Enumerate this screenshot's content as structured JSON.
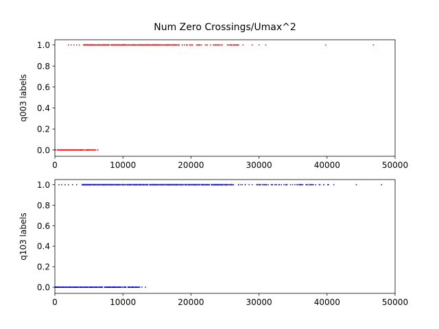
{
  "chart_data": [
    {
      "type": "scatter",
      "title": "Num Zero Crossings/Umax^2",
      "xlabel": "",
      "ylabel": "q003 labels",
      "xlim": [
        0,
        50000
      ],
      "ylim": [
        -0.06,
        1.05
      ],
      "xticks": [
        "0",
        "10000",
        "20000",
        "30000",
        "40000",
        "50000"
      ],
      "xtick_values": [
        0,
        10000,
        20000,
        30000,
        40000,
        50000
      ],
      "yticks": [
        "0.0",
        "0.2",
        "0.4",
        "0.6",
        "0.8",
        "1.0"
      ],
      "ytick_values": [
        0,
        0.2,
        0.4,
        0.6,
        0.8,
        1.0
      ],
      "color": "#ff0000",
      "series": [
        {
          "label_value": 0,
          "x_min": 0,
          "x_max": 6300,
          "dense_to": 6000,
          "outliers": [
            6300
          ]
        },
        {
          "label_value": 1,
          "x_min": 2000,
          "x_max": 46800,
          "dense_from": 4200,
          "dense_to": 18000,
          "outliers": [
            2000,
            2400,
            2800,
            3200,
            3600,
            20000,
            21000,
            23500,
            24500,
            25500,
            29000,
            30000,
            31000,
            39800,
            46800
          ]
        }
      ]
    },
    {
      "type": "scatter",
      "title": "",
      "xlabel": "",
      "ylabel": "q103 labels",
      "xlim": [
        0,
        50000
      ],
      "ylim": [
        -0.06,
        1.05
      ],
      "xticks": [
        "0",
        "10000",
        "20000",
        "30000",
        "40000",
        "50000"
      ],
      "xtick_values": [
        0,
        10000,
        20000,
        30000,
        40000,
        50000
      ],
      "yticks": [
        "0.0",
        "0.2",
        "0.4",
        "0.6",
        "0.8",
        "1.0"
      ],
      "ytick_values": [
        0,
        0.2,
        0.4,
        0.6,
        0.8,
        1.0
      ],
      "color": "#0000ff",
      "series": [
        {
          "label_value": 0,
          "x_min": 0,
          "x_max": 13300,
          "dense_to": 12500,
          "outliers": [
            12800,
            13300
          ]
        },
        {
          "label_value": 1,
          "x_min": 600,
          "x_max": 48000,
          "dense_from": 4000,
          "dense_to": 26000,
          "outliers": [
            600,
            1000,
            1500,
            2000,
            2600,
            3200,
            27000,
            28000,
            29000,
            30000,
            31000,
            32000,
            33000,
            34000,
            36000,
            37000,
            38000,
            39500,
            41000,
            44300,
            48000
          ]
        }
      ]
    }
  ]
}
